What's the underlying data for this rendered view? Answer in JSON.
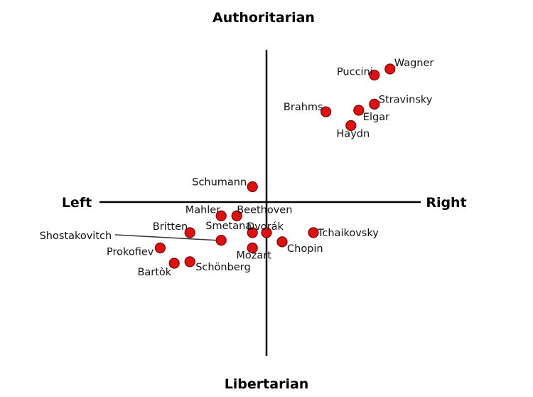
{
  "chart_data": {
    "type": "scatter",
    "title": "",
    "axes": {
      "top": "Authoritarian",
      "bottom": "Libertarian",
      "left": "Left",
      "right": "Right"
    },
    "xlim": [
      -10,
      10
    ],
    "ylim": [
      -10,
      10
    ],
    "grid": false,
    "marker_color": "#e01010",
    "points": [
      {
        "label": "Wagner",
        "x": 7.9,
        "y": 8.7
      },
      {
        "label": "Puccini",
        "x": 6.9,
        "y": 8.3
      },
      {
        "label": "Stravinsky",
        "x": 6.9,
        "y": 6.4
      },
      {
        "label": "Brahms",
        "x": 3.8,
        "y": 5.9
      },
      {
        "label": "Elgar",
        "x": 5.9,
        "y": 6.0
      },
      {
        "label": "Haydn",
        "x": 5.4,
        "y": 5.0
      },
      {
        "label": "Schumann",
        "x": -0.9,
        "y": 1.0
      },
      {
        "label": "Mahler",
        "x": -2.9,
        "y": -0.9
      },
      {
        "label": "Beethoven",
        "x": -1.9,
        "y": -0.9
      },
      {
        "label": "Britten",
        "x": -4.9,
        "y": -2.0
      },
      {
        "label": "Shostakovitch",
        "x": -2.9,
        "y": -2.5
      },
      {
        "label": "Smetana",
        "x": -0.9,
        "y": -2.0
      },
      {
        "label": "Dvorák",
        "x": 0.0,
        "y": -2.0
      },
      {
        "label": "Tchaikovsky",
        "x": 3.0,
        "y": -2.0
      },
      {
        "label": "Chopin",
        "x": 1.0,
        "y": -2.6
      },
      {
        "label": "Prokofiev",
        "x": -6.8,
        "y": -3.0
      },
      {
        "label": "Mozart",
        "x": -0.9,
        "y": -3.0
      },
      {
        "label": "Bartòk",
        "x": -5.9,
        "y": -4.0
      },
      {
        "label": "Schönberg",
        "x": -4.9,
        "y": -3.9
      }
    ]
  }
}
